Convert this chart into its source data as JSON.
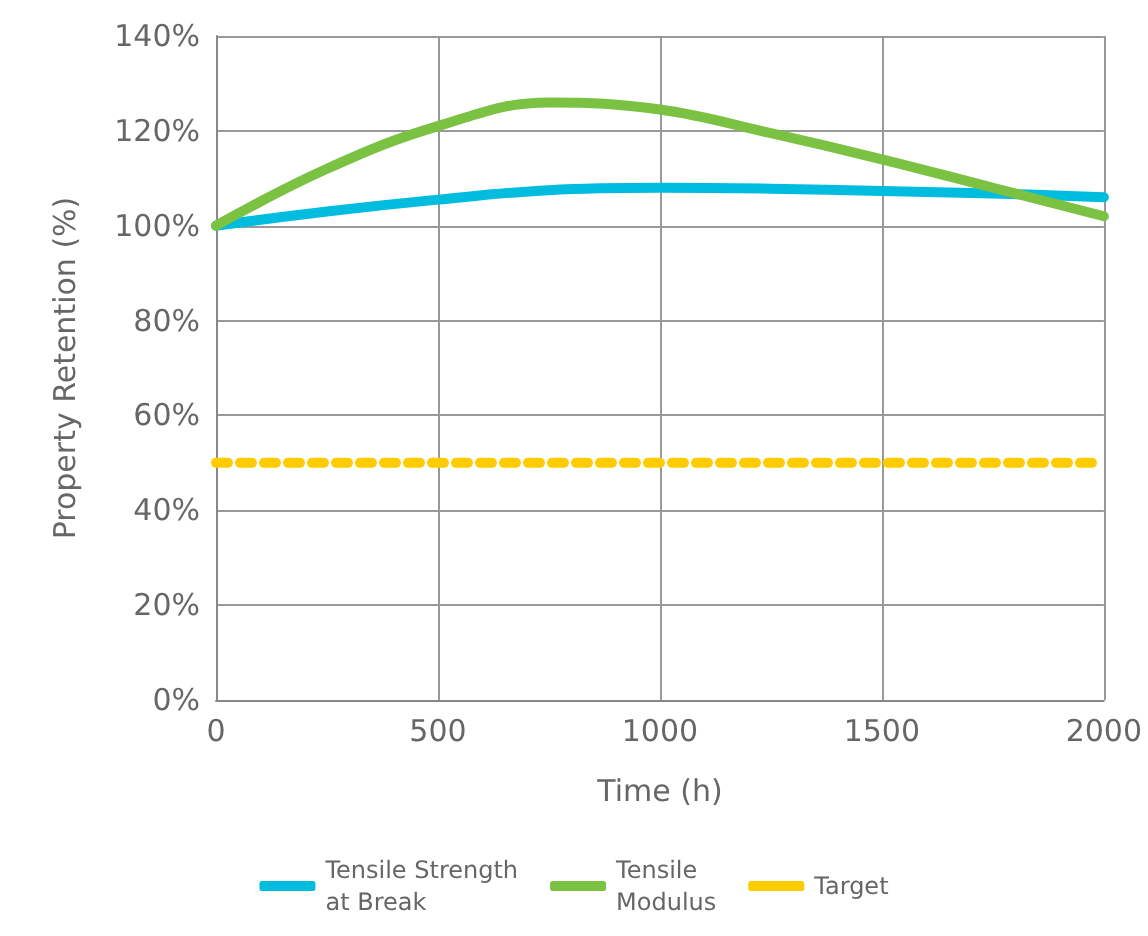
{
  "chart_data": {
    "type": "line",
    "xlabel": "Time (h)",
    "ylabel": "Property Retention (%)",
    "x": [
      0,
      250,
      500,
      750,
      1000,
      1250,
      1500,
      1750,
      2000
    ],
    "series": [
      {
        "name": "Tensile Strength\nat Break",
        "color": "#00bde0",
        "values": [
          100,
          103,
          105.5,
          107.5,
          108,
          107.8,
          107.3,
          106.8,
          106
        ]
      },
      {
        "name": "Tensile\nModulus",
        "color": "#7bc142",
        "values": [
          100,
          112,
          121,
          126,
          124.5,
          119.5,
          114,
          108,
          102
        ]
      },
      {
        "name": "Target",
        "color": "#ffcc00",
        "x": [
          0,
          2000
        ],
        "values": [
          50,
          50
        ],
        "line_style": "dashed"
      }
    ],
    "xlim": [
      0,
      2000
    ],
    "xticks": [
      0,
      500,
      1000,
      1500,
      2000
    ],
    "ylim": [
      0,
      140
    ],
    "yticks": [
      {
        "value": 0,
        "label": "0%"
      },
      {
        "value": 20,
        "label": "20%"
      },
      {
        "value": 40,
        "label": "40%"
      },
      {
        "value": 60,
        "label": "60%"
      },
      {
        "value": 80,
        "label": "80%"
      },
      {
        "value": 100,
        "label": "100%"
      },
      {
        "value": 120,
        "label": "120%"
      },
      {
        "value": 140,
        "label": "140%"
      }
    ],
    "grid": true,
    "legend": "bottom",
    "marker": "none"
  }
}
